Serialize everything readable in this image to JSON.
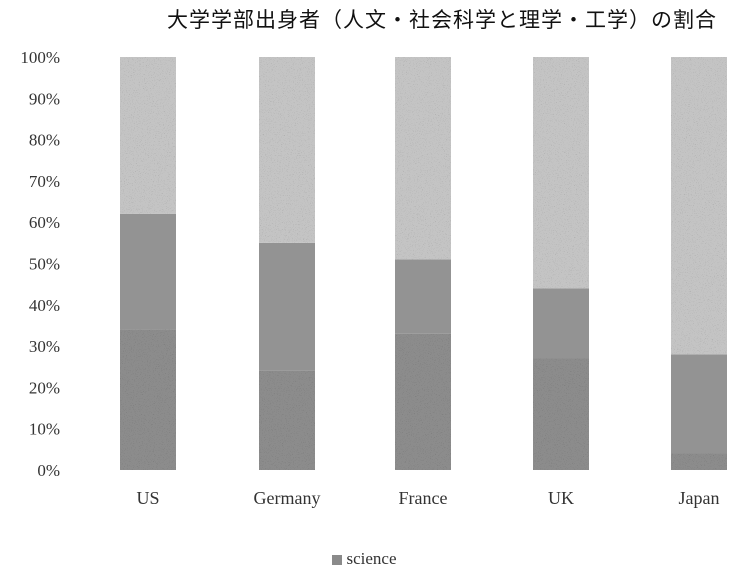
{
  "chart_data": {
    "type": "bar",
    "stacked": true,
    "title": "大学学部出身者（人文・社会科学と理学・工学）の割合",
    "categories": [
      "US",
      "Germany",
      "France",
      "UK",
      "Japan"
    ],
    "series": [
      {
        "name": "science",
        "values": [
          34,
          24,
          33,
          27,
          4
        ],
        "color": "#8c8c8c",
        "texture": "dense"
      },
      {
        "values": [
          28,
          31,
          18,
          17,
          24
        ],
        "color": "#939393",
        "texture": "solid"
      },
      {
        "values": [
          38,
          45,
          49,
          56,
          72
        ],
        "color": "#c4c4c4",
        "texture": "light"
      }
    ],
    "yticks": [
      "0%",
      "10%",
      "20%",
      "30%",
      "40%",
      "50%",
      "60%",
      "70%",
      "80%",
      "90%",
      "100%"
    ],
    "ylim": [
      0,
      100
    ],
    "grid": false,
    "legend": "bottom-center"
  },
  "legend": {
    "label": "science"
  }
}
